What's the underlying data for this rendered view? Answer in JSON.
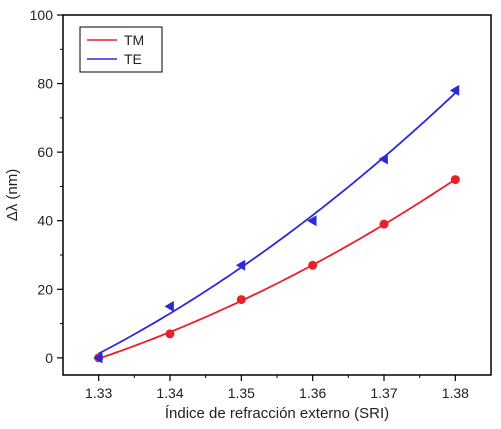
{
  "chart_data": {
    "type": "line",
    "xlabel": "Índice de refracción externo (SRI)",
    "ylabel": "Δλ (nm)",
    "xlim": [
      1.325,
      1.385
    ],
    "ylim": [
      -5,
      100
    ],
    "x_ticks": [
      1.33,
      1.34,
      1.35,
      1.36,
      1.37,
      1.38
    ],
    "x_tick_labels": [
      "1.33",
      "1.34",
      "1.35",
      "1.36",
      "1.37",
      "1.38"
    ],
    "y_ticks": [
      0,
      20,
      40,
      60,
      80,
      100
    ],
    "y_tick_labels": [
      "0",
      "20",
      "40",
      "60",
      "80",
      "100"
    ],
    "grid": false,
    "legend_position": "top-left",
    "series": [
      {
        "name": "TM",
        "color": "#e8202a",
        "marker": "circle",
        "points": {
          "x": [
            1.33,
            1.34,
            1.35,
            1.36,
            1.37,
            1.38
          ],
          "y": [
            0,
            7,
            17,
            27,
            39,
            52
          ]
        }
      },
      {
        "name": "TE",
        "color": "#2a2ad8",
        "marker": "left-triangle",
        "points": {
          "x": [
            1.33,
            1.34,
            1.35,
            1.36,
            1.37,
            1.38
          ],
          "y": [
            0,
            15,
            27,
            40,
            58,
            78
          ]
        }
      }
    ]
  }
}
